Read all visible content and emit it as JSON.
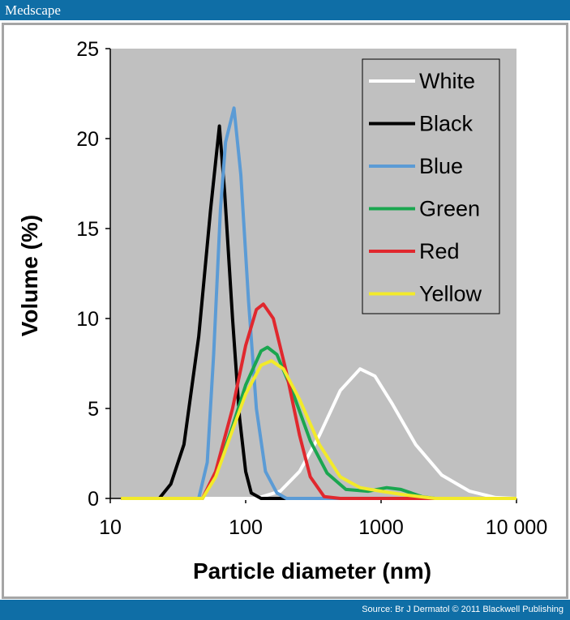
{
  "header": {
    "brand": "Medscape"
  },
  "footer": {
    "source": "Source: Br J Dermatol © 2011 Blackwell Publishing"
  },
  "chart_data": {
    "type": "line",
    "xlabel": "Particle diameter (nm)",
    "ylabel": "Volume (%)",
    "xscale": "log",
    "xlim": [
      10,
      10000
    ],
    "ylim": [
      0,
      25
    ],
    "xticks": [
      {
        "v": 10,
        "label": "10"
      },
      {
        "v": 100,
        "label": "100"
      },
      {
        "v": 1000,
        "label": "1000"
      },
      {
        "v": 10000,
        "label": "10 000"
      }
    ],
    "yticks": [
      {
        "v": 0,
        "label": "0"
      },
      {
        "v": 5,
        "label": "5"
      },
      {
        "v": 10,
        "label": "10"
      },
      {
        "v": 15,
        "label": "15"
      },
      {
        "v": 20,
        "label": "20"
      },
      {
        "v": 25,
        "label": "25"
      }
    ],
    "legend_position": "top-right",
    "plot_background": "#c0c0c0",
    "series": [
      {
        "name": "White",
        "color": "#ffffff",
        "points": [
          [
            12,
            0
          ],
          [
            120,
            0
          ],
          [
            180,
            0.4
          ],
          [
            250,
            1.5
          ],
          [
            350,
            3.5
          ],
          [
            500,
            6
          ],
          [
            700,
            7.2
          ],
          [
            900,
            6.8
          ],
          [
            1200,
            5.3
          ],
          [
            1800,
            3
          ],
          [
            2800,
            1.3
          ],
          [
            4500,
            0.4
          ],
          [
            7000,
            0.05
          ],
          [
            10000,
            0
          ]
        ]
      },
      {
        "name": "Black",
        "color": "#000000",
        "points": [
          [
            12,
            0
          ],
          [
            23,
            0
          ],
          [
            28,
            0.8
          ],
          [
            35,
            3
          ],
          [
            45,
            9
          ],
          [
            55,
            16
          ],
          [
            64,
            20.7
          ],
          [
            70,
            17
          ],
          [
            80,
            10
          ],
          [
            90,
            4.5
          ],
          [
            100,
            1.5
          ],
          [
            110,
            0.3
          ],
          [
            130,
            0
          ],
          [
            10000,
            0
          ]
        ]
      },
      {
        "name": "Blue",
        "color": "#5b9bd5",
        "points": [
          [
            12,
            0
          ],
          [
            45,
            0
          ],
          [
            52,
            2
          ],
          [
            58,
            8
          ],
          [
            65,
            16
          ],
          [
            71,
            19.8
          ],
          [
            82,
            21.7
          ],
          [
            92,
            18
          ],
          [
            105,
            11
          ],
          [
            120,
            5
          ],
          [
            140,
            1.5
          ],
          [
            170,
            0.3
          ],
          [
            200,
            0
          ],
          [
            10000,
            0
          ]
        ]
      },
      {
        "name": "Green",
        "color": "#1aa64f",
        "points": [
          [
            12,
            0
          ],
          [
            48,
            0
          ],
          [
            60,
            1.3
          ],
          [
            80,
            4
          ],
          [
            100,
            6.3
          ],
          [
            130,
            8.2
          ],
          [
            145,
            8.4
          ],
          [
            170,
            8
          ],
          [
            220,
            6
          ],
          [
            300,
            3.2
          ],
          [
            400,
            1.4
          ],
          [
            550,
            0.5
          ],
          [
            800,
            0.4
          ],
          [
            1100,
            0.6
          ],
          [
            1400,
            0.5
          ],
          [
            2000,
            0.1
          ],
          [
            2500,
            0
          ],
          [
            10000,
            0
          ]
        ]
      },
      {
        "name": "Red",
        "color": "#e0282e",
        "points": [
          [
            12,
            0
          ],
          [
            48,
            0
          ],
          [
            60,
            1.5
          ],
          [
            80,
            5
          ],
          [
            100,
            8.5
          ],
          [
            120,
            10.5
          ],
          [
            135,
            10.8
          ],
          [
            160,
            10
          ],
          [
            200,
            7
          ],
          [
            250,
            3.5
          ],
          [
            300,
            1.2
          ],
          [
            380,
            0.1
          ],
          [
            500,
            0
          ],
          [
            10000,
            0
          ]
        ]
      },
      {
        "name": "Yellow",
        "color": "#f2ea2a",
        "points": [
          [
            12,
            0
          ],
          [
            48,
            0
          ],
          [
            60,
            1.2
          ],
          [
            80,
            3.8
          ],
          [
            100,
            5.8
          ],
          [
            130,
            7.4
          ],
          [
            155,
            7.65
          ],
          [
            190,
            7.2
          ],
          [
            250,
            5.5
          ],
          [
            350,
            3
          ],
          [
            500,
            1.2
          ],
          [
            700,
            0.6
          ],
          [
            1000,
            0.4
          ],
          [
            1500,
            0.2
          ],
          [
            2500,
            0
          ],
          [
            10000,
            0
          ]
        ]
      }
    ]
  }
}
